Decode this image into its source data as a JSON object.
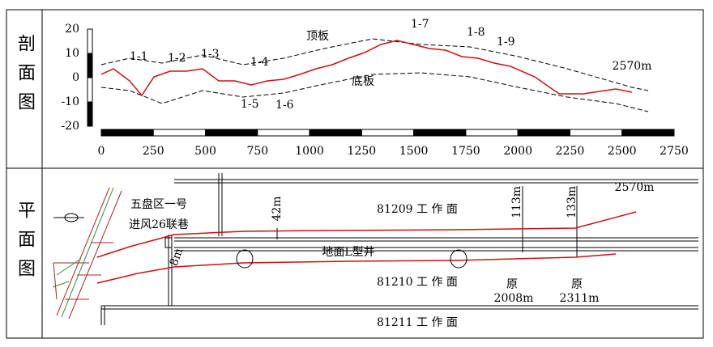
{
  "section": {
    "title": "剖面图",
    "yticks": [
      20,
      10,
      0,
      -10,
      -20
    ],
    "xticks": [
      0,
      250,
      500,
      750,
      1000,
      1250,
      1500,
      1750,
      2000,
      2250,
      2500,
      2750
    ],
    "labels": [
      "1-1",
      "1-2",
      "1-3",
      "1-4",
      "1-5",
      "1-6",
      "1-7",
      "1-8",
      "1-9"
    ],
    "roof": "顶板",
    "floor": "底板",
    "end": "2570m"
  },
  "plan": {
    "title": "平面图",
    "district": "五盘区一号",
    "roadway": "进风26联巷",
    "faces": [
      "81209 工 作 面",
      "81210 工 作 面",
      "81211 工 作 面"
    ],
    "well": "地面L型井",
    "distances": [
      "42m",
      "113m",
      "133m",
      "8m"
    ],
    "end": "2570m",
    "origins": [
      {
        "mark": "原",
        "dist": "2008m"
      },
      {
        "mark": "原",
        "dist": "2311m"
      }
    ]
  }
}
